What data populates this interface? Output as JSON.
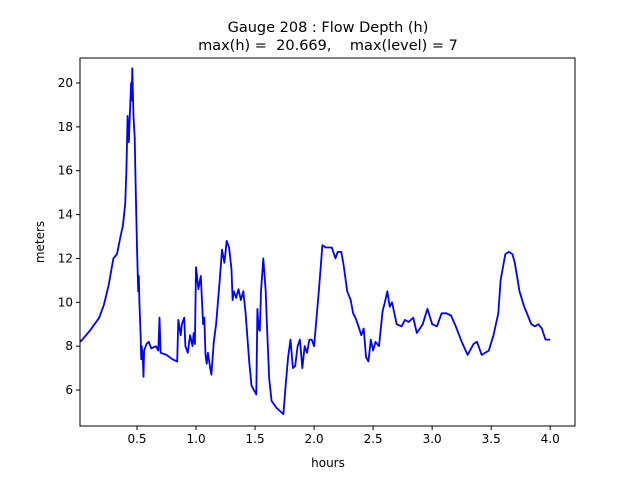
{
  "chart_data": {
    "type": "line",
    "title": "Gauge 208 : Flow Depth (h)",
    "subtitle": "max(h) =  20.669,    max(level) = 7",
    "xlabel": "hours",
    "ylabel": "meters",
    "xlim": [
      0.017,
      4.21
    ],
    "ylim": [
      4.36,
      21.14
    ],
    "xticks": [
      0.5,
      1.0,
      1.5,
      2.0,
      2.5,
      3.0,
      3.5,
      4.0
    ],
    "xtick_labels": [
      "0.5",
      "1.0",
      "1.5",
      "2.0",
      "2.5",
      "3.0",
      "3.5",
      "4.0"
    ],
    "yticks": [
      6,
      8,
      10,
      12,
      14,
      16,
      18,
      20
    ],
    "ytick_labels": [
      "6",
      "8",
      "10",
      "12",
      "14",
      "16",
      "18",
      "20"
    ],
    "grid": false,
    "series": [
      {
        "name": "h",
        "color": "#0000ff",
        "x": [
          0.02,
          0.1,
          0.18,
          0.22,
          0.26,
          0.3,
          0.33,
          0.36,
          0.38,
          0.4,
          0.41,
          0.42,
          0.43,
          0.44,
          0.45,
          0.455,
          0.46,
          0.47,
          0.48,
          0.49,
          0.5,
          0.51,
          0.515,
          0.52,
          0.53,
          0.535,
          0.54,
          0.55,
          0.555,
          0.56,
          0.58,
          0.6,
          0.62,
          0.66,
          0.68,
          0.69,
          0.7,
          0.75,
          0.8,
          0.84,
          0.85,
          0.87,
          0.88,
          0.9,
          0.91,
          0.93,
          0.95,
          0.97,
          0.98,
          0.99,
          1.0,
          1.02,
          1.04,
          1.06,
          1.07,
          1.08,
          1.09,
          1.1,
          1.12,
          1.13,
          1.15,
          1.17,
          1.2,
          1.22,
          1.24,
          1.26,
          1.28,
          1.3,
          1.31,
          1.32,
          1.34,
          1.36,
          1.38,
          1.4,
          1.42,
          1.45,
          1.47,
          1.49,
          1.5,
          1.51,
          1.52,
          1.53,
          1.54,
          1.55,
          1.57,
          1.59,
          1.6,
          1.62,
          1.64,
          1.68,
          1.72,
          1.74,
          1.76,
          1.78,
          1.8,
          1.82,
          1.84,
          1.86,
          1.88,
          1.9,
          1.92,
          1.94,
          1.96,
          1.98,
          2.0,
          2.04,
          2.07,
          2.1,
          2.15,
          2.18,
          2.2,
          2.23,
          2.25,
          2.28,
          2.31,
          2.33,
          2.35,
          2.37,
          2.4,
          2.42,
          2.44,
          2.46,
          2.48,
          2.5,
          2.52,
          2.55,
          2.58,
          2.6,
          2.62,
          2.64,
          2.66,
          2.7,
          2.74,
          2.77,
          2.8,
          2.84,
          2.87,
          2.92,
          2.96,
          3.0,
          3.04,
          3.08,
          3.12,
          3.16,
          3.2,
          3.25,
          3.3,
          3.35,
          3.38,
          3.42,
          3.48,
          3.52,
          3.56,
          3.58,
          3.62,
          3.65,
          3.68,
          3.7,
          3.74,
          3.78,
          3.81,
          3.84,
          3.87,
          3.9,
          3.93,
          3.96,
          4.0
        ],
        "y": [
          8.2,
          8.7,
          9.3,
          9.9,
          10.8,
          12.0,
          12.2,
          13.0,
          13.5,
          14.5,
          16.0,
          18.5,
          17.3,
          18.6,
          20.0,
          19.2,
          20.669,
          18.5,
          17.5,
          15.0,
          12.5,
          10.5,
          11.2,
          10.0,
          8.5,
          7.4,
          8.0,
          7.3,
          6.6,
          7.8,
          8.1,
          8.2,
          7.9,
          8.0,
          7.8,
          9.3,
          7.7,
          7.6,
          7.4,
          7.3,
          9.2,
          8.5,
          9.0,
          9.3,
          8.0,
          7.7,
          8.5,
          8.0,
          8.6,
          8.1,
          11.6,
          10.6,
          11.2,
          9.0,
          9.3,
          7.6,
          7.2,
          7.7,
          7.0,
          6.7,
          8.2,
          9.0,
          11.0,
          12.4,
          11.8,
          12.8,
          12.5,
          11.5,
          10.1,
          10.5,
          10.2,
          10.6,
          10.1,
          10.5,
          9.5,
          7.3,
          6.2,
          6.0,
          5.9,
          5.8,
          9.7,
          8.8,
          8.7,
          10.5,
          12.0,
          10.5,
          9.0,
          6.5,
          5.5,
          5.2,
          5.0,
          4.9,
          6.3,
          7.5,
          8.3,
          7.0,
          7.1,
          8.0,
          8.3,
          7.0,
          8.0,
          7.7,
          8.3,
          8.3,
          8.0,
          10.5,
          12.6,
          12.5,
          12.5,
          12.0,
          12.3,
          12.3,
          11.7,
          10.5,
          10.1,
          9.5,
          9.3,
          9.0,
          8.5,
          8.8,
          7.5,
          7.3,
          8.3,
          7.8,
          8.2,
          8.0,
          9.6,
          10.0,
          10.5,
          9.8,
          10.0,
          9.0,
          8.9,
          9.2,
          9.1,
          9.3,
          8.6,
          9.0,
          9.7,
          9.0,
          8.9,
          9.5,
          9.5,
          9.4,
          8.9,
          8.2,
          7.6,
          8.1,
          8.2,
          7.6,
          7.8,
          8.5,
          9.5,
          11.0,
          12.2,
          12.3,
          12.2,
          11.8,
          10.5,
          9.8,
          9.4,
          9.0,
          8.9,
          9.0,
          8.8,
          8.3,
          8.3
        ]
      }
    ]
  }
}
